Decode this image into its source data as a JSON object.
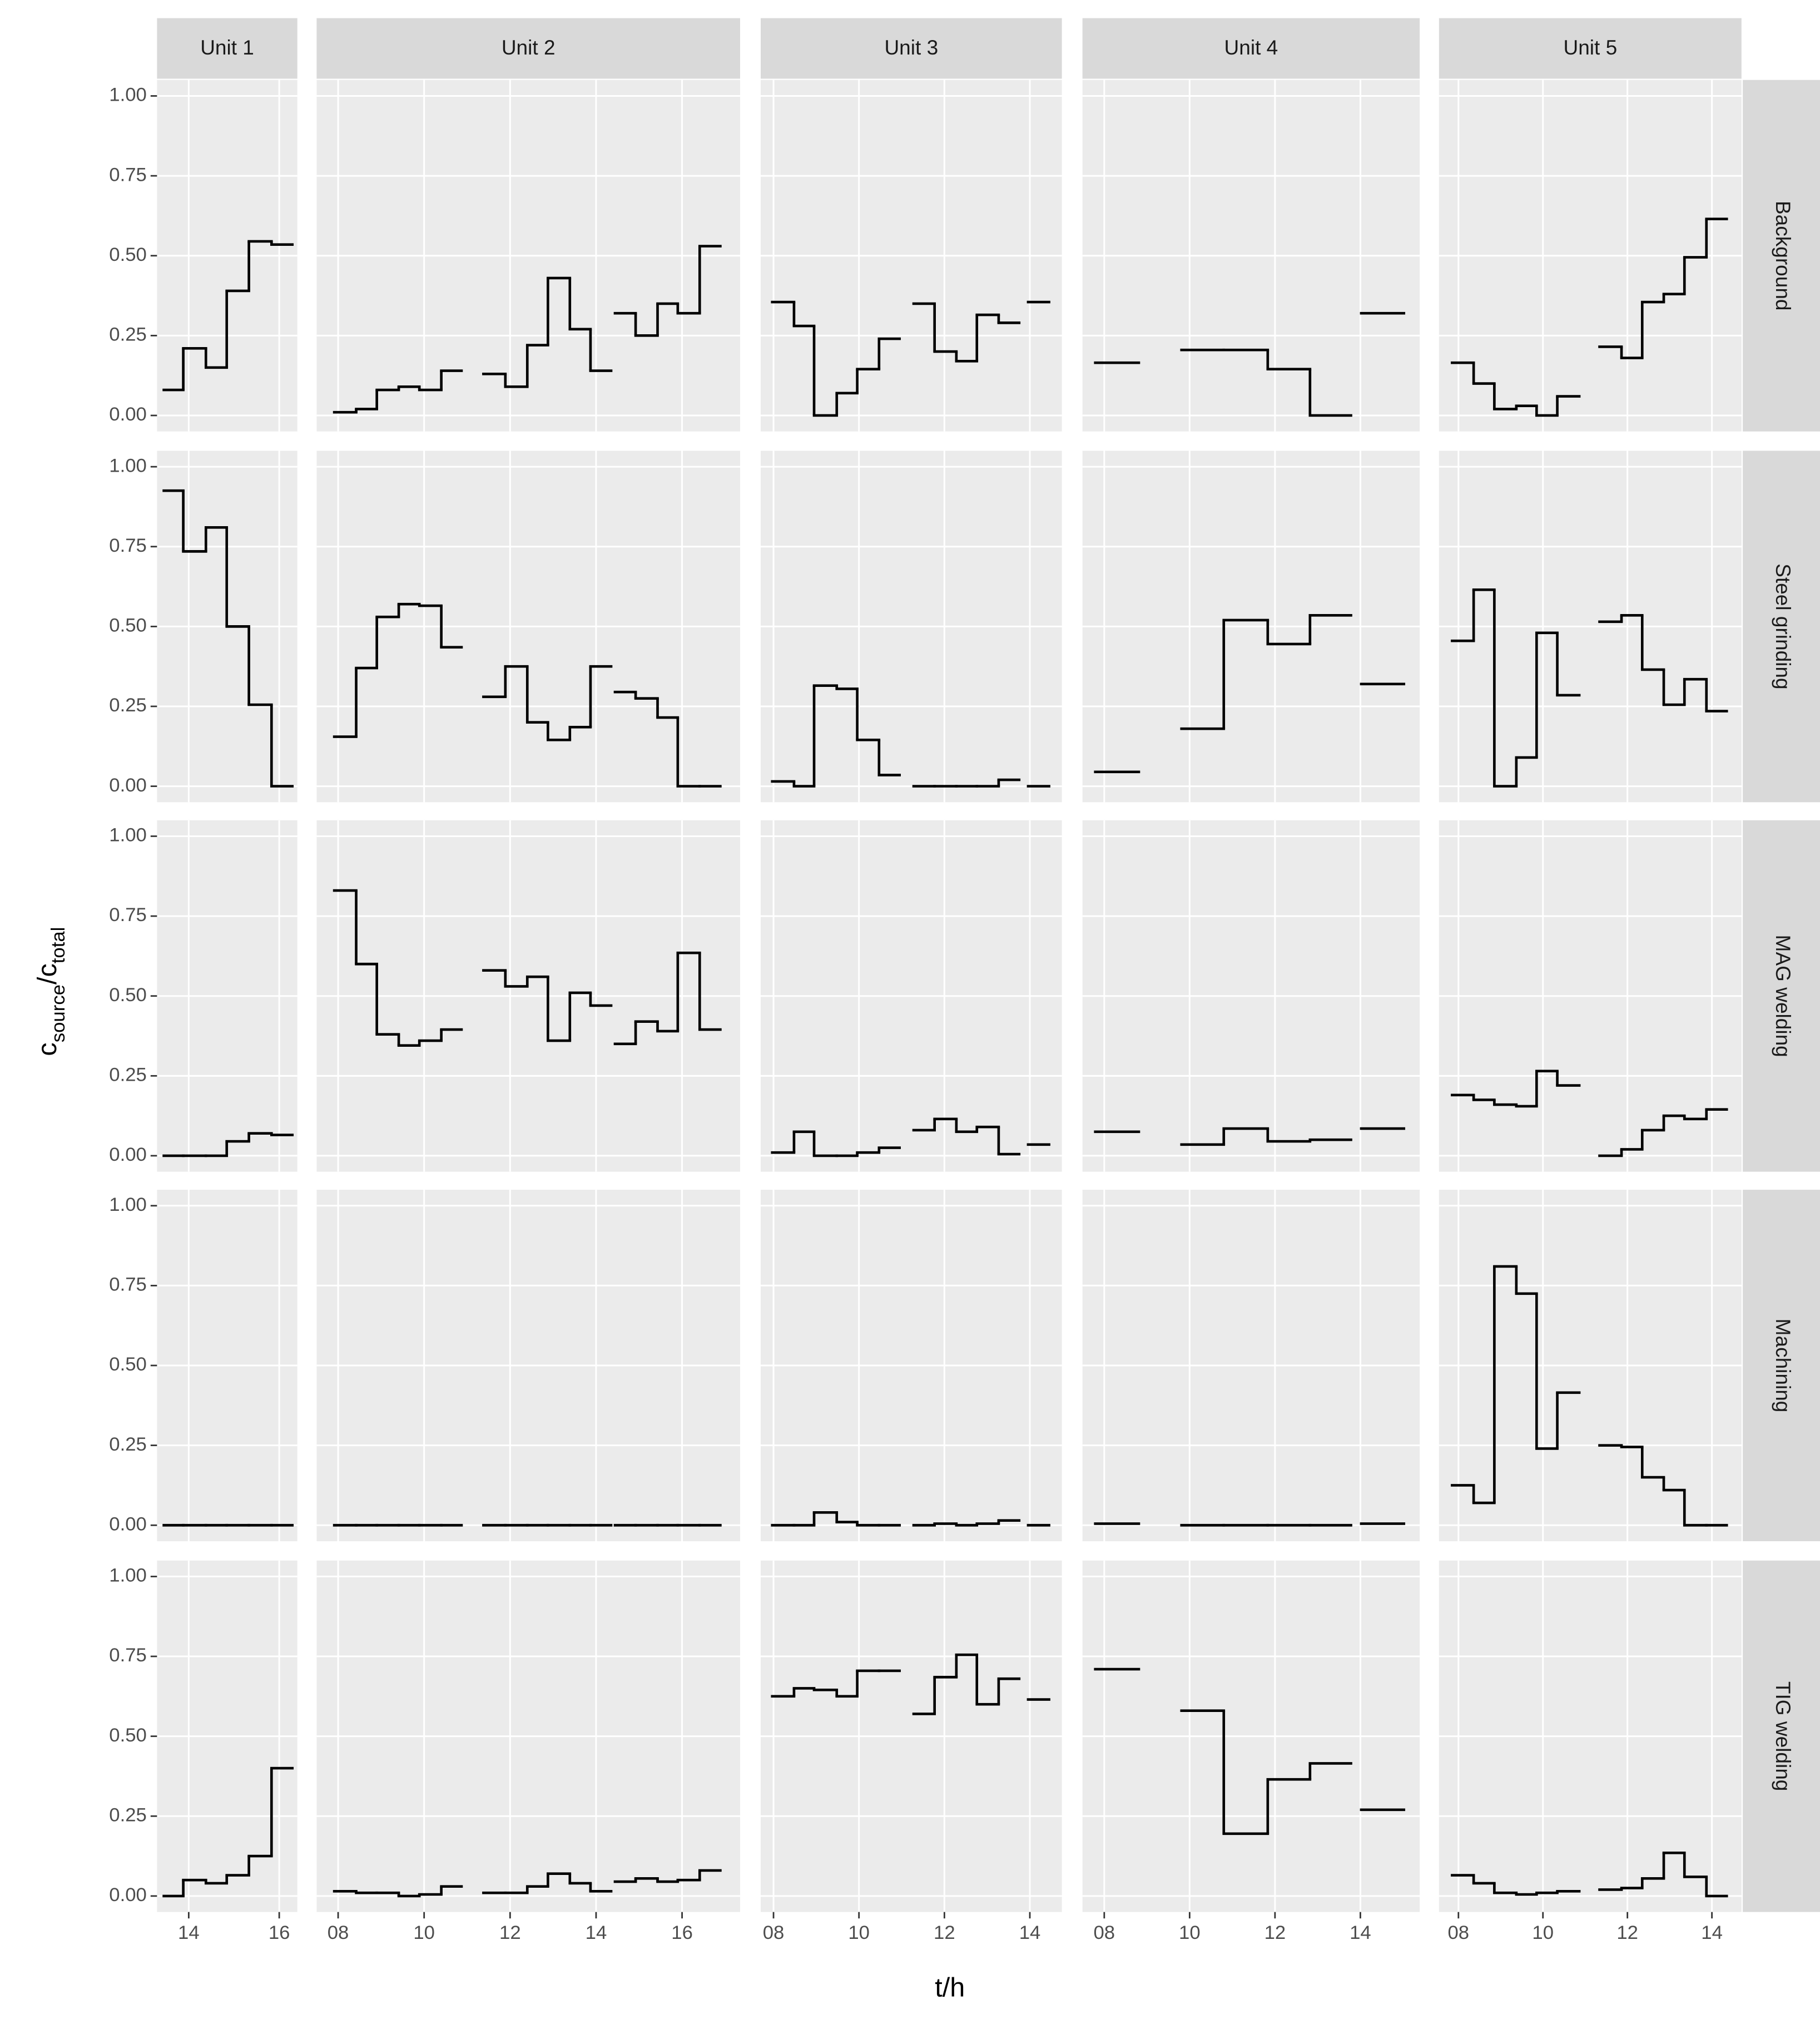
{
  "chart_data": {
    "type": "step",
    "x_label": "t/h",
    "y_label": [
      {
        "text": "c"
      },
      {
        "text": "source",
        "sub": true
      },
      {
        "text": "/"
      },
      {
        "text": "c"
      },
      {
        "text": "total",
        "sub": true
      }
    ],
    "ylim": [
      -0.05,
      1.05
    ],
    "yticks": [
      {
        "value": 0,
        "label": "0.00"
      },
      {
        "value": 0.25,
        "label": "0.25"
      },
      {
        "value": 0.5,
        "label": "0.50"
      },
      {
        "value": 0.75,
        "label": "0.75"
      },
      {
        "value": 1,
        "label": "1.00"
      }
    ],
    "grid": true,
    "color": "#000000",
    "rows": [
      "Background",
      "Steel grinding",
      "MAG welding",
      "Machining",
      "TIG welding"
    ],
    "columns": [
      {
        "name": "Unit 1",
        "xlim": [
          13.3,
          16.4
        ],
        "xticks": [
          14,
          16
        ],
        "x_edges": [
          13.45,
          13.88,
          14.38,
          14.84,
          15.33,
          15.83,
          16.29
        ],
        "series": [
          {
            "values": [
              0.08,
              0.21,
              0.15,
              0.39,
              0.545,
              0.535
            ]
          },
          {
            "values": [
              0.925,
              0.735,
              0.81,
              0.5,
              0.255,
              0
            ]
          },
          {
            "values": [
              0,
              0,
              0,
              0.045,
              0.07,
              0.065
            ]
          },
          {
            "values": [
              0,
              0,
              0,
              0,
              0,
              0
            ]
          },
          {
            "values": [
              0,
              0.05,
              0.04,
              0.065,
              0.125,
              0.4
            ]
          }
        ]
      },
      {
        "name": "Unit 2",
        "xlim": [
          7.5,
          17.35
        ],
        "xticks": [
          {
            "value": 8,
            "label": "08"
          },
          10,
          12,
          14,
          16
        ],
        "x_edges": [
          7.91,
          8.42,
          8.9,
          9.41,
          9.89,
          10.4,
          10.87,
          11.38,
          11.89,
          12.4,
          12.88,
          13.39,
          13.87,
          14.35,
          14.44,
          14.92,
          15.43,
          15.9,
          16.41,
          16.89
        ],
        "series": [
          {
            "values": [
              0.01,
              0.02,
              0.08,
              0.09,
              0.08,
              0.14,
              null,
              0.13,
              0.09,
              0.22,
              0.43,
              0.27,
              0.14,
              null,
              0.32,
              0.25,
              0.35,
              0.32,
              0.53
            ]
          },
          {
            "values": [
              0.155,
              0.37,
              0.53,
              0.57,
              0.565,
              0.435,
              null,
              0.28,
              0.375,
              0.2,
              0.145,
              0.185,
              0.375,
              null,
              0.295,
              0.275,
              0.215,
              0,
              0
            ]
          },
          {
            "values": [
              0.83,
              0.6,
              0.38,
              0.345,
              0.36,
              0.395,
              null,
              0.58,
              0.53,
              0.56,
              0.36,
              0.51,
              0.47,
              null,
              0.35,
              0.42,
              0.39,
              0.635,
              0.395
            ]
          },
          {
            "values": [
              0,
              0,
              0,
              0,
              0,
              0,
              null,
              0,
              0,
              0,
              0,
              0,
              0,
              null,
              0,
              0,
              0,
              0,
              0
            ]
          },
          {
            "values": [
              0.015,
              0.01,
              0.01,
              0,
              0.005,
              0.03,
              null,
              0.01,
              0.01,
              0.03,
              0.07,
              0.04,
              0.015,
              null,
              0.045,
              0.055,
              0.045,
              0.05,
              0.08
            ]
          }
        ]
      },
      {
        "name": "Unit 3",
        "xlim": [
          7.7,
          14.75
        ],
        "xticks": [
          {
            "value": 8,
            "label": "08"
          },
          10,
          12,
          14
        ],
        "x_edges": [
          7.97,
          8.48,
          8.95,
          9.48,
          9.96,
          10.47,
          10.95,
          11.28,
          11.77,
          12.28,
          12.76,
          13.27,
          13.75,
          13.96,
          14.45
        ],
        "series": [
          {
            "values": [
              0.355,
              0.28,
              0,
              0.07,
              0.145,
              0.24,
              null,
              0.35,
              0.2,
              0.17,
              0.315,
              0.29,
              null,
              0.355
            ]
          },
          {
            "values": [
              0.015,
              0,
              0.315,
              0.305,
              0.145,
              0.035,
              null,
              0,
              0,
              0,
              0,
              0.02,
              null,
              0
            ]
          },
          {
            "values": [
              0.01,
              0.075,
              0,
              0,
              0.01,
              0.025,
              null,
              0.08,
              0.115,
              0.075,
              0.09,
              0.005,
              null,
              0.035
            ]
          },
          {
            "values": [
              0,
              0,
              0.04,
              0.01,
              0,
              0,
              null,
              0,
              0.005,
              0,
              0.005,
              0.015,
              null,
              0
            ]
          },
          {
            "values": [
              0.625,
              0.65,
              0.645,
              0.625,
              0.705,
              0.705,
              null,
              0.57,
              0.685,
              0.755,
              0.6,
              0.68,
              null,
              0.615
            ]
          }
        ]
      },
      {
        "name": "Unit 4",
        "xlim": [
          7.49,
          15.39
        ],
        "xticks": [
          {
            "value": 8,
            "label": "08"
          },
          10,
          12,
          14
        ],
        "x_edges": [
          7.79,
          8.81,
          9.81,
          10.8,
          11.83,
          12.82,
          13.78,
          14.02,
          15.02
        ],
        "series": [
          {
            "values": [
              0.165,
              null,
              0.205,
              0.205,
              0.145,
              0,
              null,
              0.32
            ]
          },
          {
            "values": [
              0.045,
              null,
              0.18,
              0.52,
              0.445,
              0.535,
              null,
              0.32
            ]
          },
          {
            "values": [
              0.075,
              null,
              0.035,
              0.085,
              0.045,
              0.05,
              null,
              0.085
            ]
          },
          {
            "values": [
              0.005,
              null,
              0,
              0,
              0,
              0,
              null,
              0.005
            ]
          },
          {
            "values": [
              0.71,
              null,
              0.58,
              0.195,
              0.365,
              0.415,
              null,
              0.27
            ]
          }
        ]
      },
      {
        "name": "Unit 5",
        "xlim": [
          7.54,
          14.7
        ],
        "xticks": [
          {
            "value": 8,
            "label": "08"
          },
          10,
          12,
          14
        ],
        "x_edges": [
          7.85,
          8.36,
          8.85,
          9.37,
          9.85,
          10.34,
          10.86,
          11.34,
          11.86,
          12.35,
          12.86,
          13.35,
          13.87,
          14.35
        ],
        "series": [
          {
            "values": [
              0.165,
              0.1,
              0.02,
              0.03,
              0,
              0.06,
              null,
              0.215,
              0.18,
              0.355,
              0.38,
              0.495,
              0.615
            ]
          },
          {
            "values": [
              0.455,
              0.615,
              0,
              0.09,
              0.48,
              0.285,
              null,
              0.515,
              0.535,
              0.365,
              0.255,
              0.335,
              0.235
            ]
          },
          {
            "values": [
              0.19,
              0.175,
              0.16,
              0.155,
              0.265,
              0.22,
              null,
              0,
              0.02,
              0.08,
              0.125,
              0.115,
              0.145
            ]
          },
          {
            "values": [
              0.125,
              0.07,
              0.81,
              0.725,
              0.24,
              0.415,
              null,
              0.25,
              0.245,
              0.15,
              0.11,
              0,
              0
            ]
          },
          {
            "values": [
              0.065,
              0.04,
              0.01,
              0.005,
              0.01,
              0.015,
              null,
              0.02,
              0.025,
              0.055,
              0.135,
              0.06,
              0
            ]
          }
        ]
      }
    ]
  }
}
